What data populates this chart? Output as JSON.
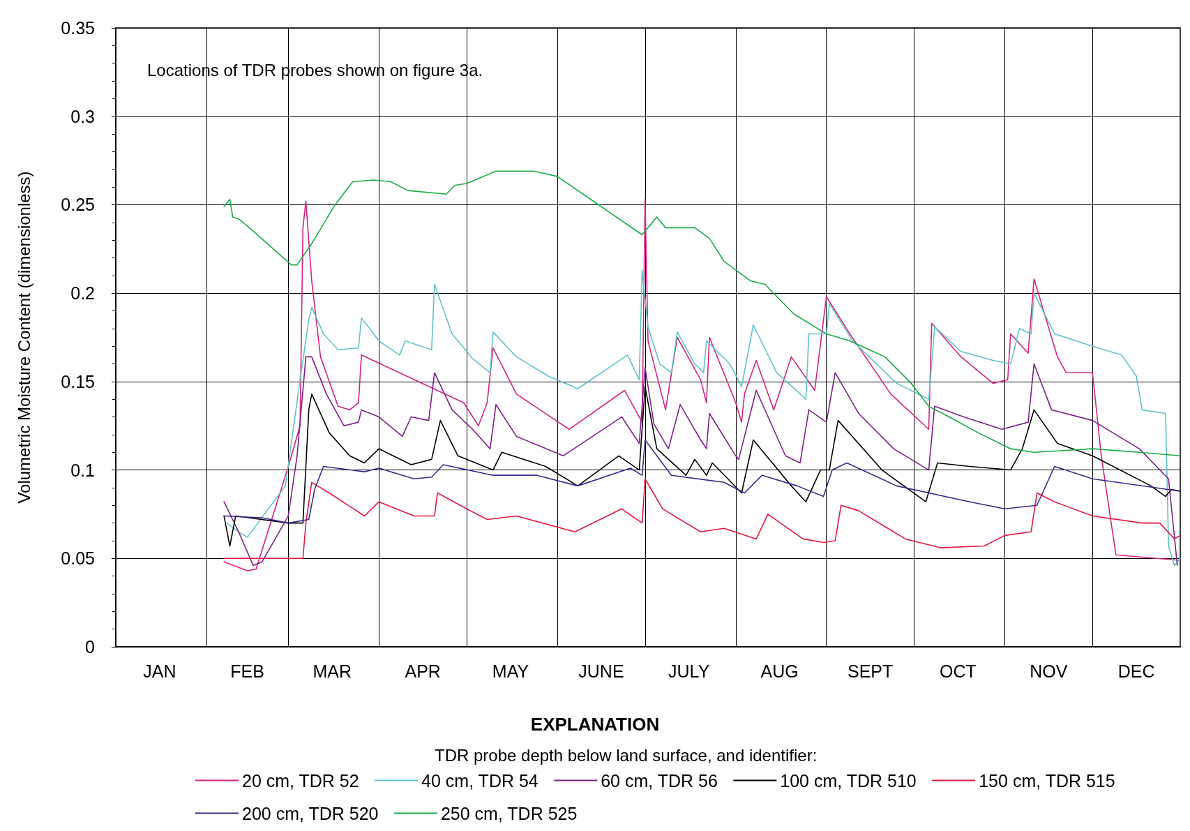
{
  "chart_data": {
    "type": "line",
    "ylabel": "Volumetric Moisture Content (dimensionless)",
    "legend_title": "EXPLANATION",
    "annotations": [
      "Locations of TDR probes shown on figure 3a.",
      "TDR probe depth below land surface, and identifier:"
    ],
    "xlim": [
      "--01-01",
      "--12-31"
    ],
    "xticks": [
      {
        "value": "--01-16",
        "label": "JAN"
      },
      {
        "value": "--02-01",
        "label": null
      },
      {
        "value": "--02-15",
        "label": "FEB"
      },
      {
        "value": "--03-01",
        "label": null
      },
      {
        "value": "--03-16",
        "label": "MAR"
      },
      {
        "value": "--04-01",
        "label": null
      },
      {
        "value": "--04-16",
        "label": "APR"
      },
      {
        "value": "--05-01",
        "label": null
      },
      {
        "value": "--05-16",
        "label": "MAY"
      },
      {
        "value": "--06-01",
        "label": null
      },
      {
        "value": "--06-16",
        "label": "JUNE"
      },
      {
        "value": "--07-01",
        "label": null
      },
      {
        "value": "--07-16",
        "label": "JULY"
      },
      {
        "value": "--08-01",
        "label": null
      },
      {
        "value": "--08-16",
        "label": "AUG"
      },
      {
        "value": "--09-01",
        "label": null
      },
      {
        "value": "--09-16",
        "label": "SEPT"
      },
      {
        "value": "--10-01",
        "label": null
      },
      {
        "value": "--10-16",
        "label": "OCT"
      },
      {
        "value": "--11-01",
        "label": null
      },
      {
        "value": "--11-16",
        "label": "NOV"
      },
      {
        "value": "--12-01",
        "label": null
      },
      {
        "value": "--12-16",
        "label": "DEC"
      }
    ],
    "ylim": [
      0,
      0.35
    ],
    "yticks": [
      0,
      0.05,
      0.1,
      0.15,
      0.2,
      0.25,
      0.3,
      0.35
    ],
    "grid": true,
    "legend": "bottom",
    "marker": "none",
    "line_style": "solid",
    "series": [
      {
        "name": "20 cm, TDR 52",
        "color": "#d4237f",
        "x": [
          "--02-07",
          "--02-15",
          "--02-18",
          "--03-01",
          "--03-05",
          "--03-06",
          "--03-07",
          "--03-09",
          "--03-12",
          "--03-18",
          "--03-22",
          "--03-25",
          "--03-26",
          "--04-30",
          "--05-05",
          "--05-08",
          "--05-10",
          "--05-18",
          "--06-05",
          "--06-24",
          "--06-30",
          "--07-01",
          "--07-02",
          "--07-08",
          "--07-12",
          "--07-20",
          "--07-22",
          "--07-23",
          "--08-01",
          "--08-03",
          "--08-04",
          "--08-08",
          "--08-14",
          "--08-20",
          "--08-28",
          "--09-01",
          "--09-09",
          "--09-23",
          "--10-06",
          "--10-07",
          "--10-17",
          "--10-28",
          "--11-02",
          "--11-03",
          "--11-09",
          "--11-11",
          "--11-19",
          "--11-22",
          "--12-01",
          "--12-04",
          "--12-09",
          "--12-30"
        ],
        "values": [
          0.048,
          0.043,
          0.044,
          0.102,
          0.125,
          0.237,
          0.252,
          0.207,
          0.164,
          0.136,
          0.134,
          0.138,
          0.165,
          0.138,
          0.125,
          0.138,
          0.169,
          0.143,
          0.123,
          0.145,
          0.127,
          0.253,
          0.173,
          0.134,
          0.175,
          0.151,
          0.138,
          0.175,
          0.138,
          0.127,
          0.143,
          0.162,
          0.134,
          0.164,
          0.145,
          0.198,
          0.177,
          0.143,
          0.123,
          0.183,
          0.164,
          0.149,
          0.151,
          0.177,
          0.166,
          0.208,
          0.164,
          0.155,
          0.155,
          0.108,
          0.052,
          0.049
        ]
      },
      {
        "name": "40 cm, TDR 54",
        "color": "#5fc3c9",
        "x": [
          "--02-08",
          "--02-12",
          "--02-15",
          "--02-28",
          "--03-05",
          "--03-08",
          "--03-09",
          "--03-13",
          "--03-18",
          "--03-25",
          "--03-26",
          "--04-01",
          "--04-08",
          "--04-10",
          "--04-19",
          "--04-20",
          "--04-26",
          "--05-03",
          "--05-09",
          "--05-10",
          "--05-18",
          "--05-29",
          "--06-08",
          "--06-25",
          "--06-29",
          "--06-30",
          "--07-02",
          "--07-06",
          "--07-10",
          "--07-12",
          "--07-18",
          "--07-21",
          "--07-22",
          "--07-30",
          "--08-03",
          "--08-07",
          "--08-15",
          "--08-25",
          "--08-26",
          "--09-01",
          "--09-02",
          "--09-10",
          "--09-25",
          "--10-06",
          "--10-08",
          "--10-17",
          "--10-28",
          "--11-03",
          "--11-06",
          "--11-10",
          "--11-11",
          "--11-18",
          "--12-01",
          "--12-11",
          "--12-16",
          "--12-18",
          "--12-26",
          "--12-27",
          "--12-29",
          "--12-31"
        ],
        "values": [
          0.07,
          0.065,
          0.062,
          0.091,
          0.151,
          0.185,
          0.192,
          0.177,
          0.168,
          0.169,
          0.186,
          0.173,
          0.165,
          0.173,
          0.168,
          0.205,
          0.177,
          0.163,
          0.155,
          0.178,
          0.164,
          0.153,
          0.146,
          0.165,
          0.151,
          0.213,
          0.181,
          0.16,
          0.155,
          0.178,
          0.16,
          0.155,
          0.173,
          0.16,
          0.147,
          0.182,
          0.155,
          0.14,
          0.177,
          0.177,
          0.194,
          0.173,
          0.149,
          0.14,
          0.181,
          0.167,
          0.162,
          0.16,
          0.18,
          0.177,
          0.2,
          0.177,
          0.17,
          0.165,
          0.153,
          0.134,
          0.132,
          0.057,
          0.046,
          0.05
        ]
      },
      {
        "name": "60 cm, TDR 56",
        "color": "#7d1f8c",
        "x": [
          "--02-07",
          "--02-12",
          "--02-17",
          "--02-20",
          "--03-01",
          "--03-04",
          "--03-07",
          "--03-09",
          "--03-14",
          "--03-20",
          "--03-25",
          "--03-26",
          "--04-01",
          "--04-09",
          "--04-12",
          "--04-18",
          "--04-20",
          "--04-26",
          "--05-03",
          "--05-09",
          "--05-11",
          "--05-18",
          "--06-03",
          "--06-23",
          "--06-29",
          "--07-01",
          "--07-04",
          "--07-09",
          "--07-13",
          "--07-20",
          "--07-22",
          "--07-23",
          "--08-01",
          "--08-02",
          "--08-08",
          "--08-18",
          "--08-23",
          "--08-26",
          "--09-01",
          "--09-04",
          "--09-12",
          "--09-24",
          "--10-06",
          "--10-08",
          "--10-18",
          "--10-31",
          "--11-09",
          "--11-11",
          "--11-17",
          "--12-01",
          "--12-17",
          "--12-27",
          "--12-30"
        ],
        "values": [
          0.082,
          0.065,
          0.046,
          0.048,
          0.074,
          0.108,
          0.164,
          0.164,
          0.143,
          0.125,
          0.127,
          0.134,
          0.13,
          0.119,
          0.13,
          0.128,
          0.155,
          0.134,
          0.123,
          0.112,
          0.137,
          0.119,
          0.108,
          0.13,
          0.115,
          0.158,
          0.126,
          0.112,
          0.137,
          0.117,
          0.112,
          0.132,
          0.108,
          0.106,
          0.145,
          0.108,
          0.104,
          0.134,
          0.127,
          0.155,
          0.132,
          0.112,
          0.1,
          0.136,
          0.13,
          0.123,
          0.127,
          0.16,
          0.134,
          0.128,
          0.112,
          0.095,
          0.046
        ]
      },
      {
        "name": "100 cm, TDR 510",
        "color": "#000000",
        "x": [
          "--02-07",
          "--02-09",
          "--02-11",
          "--03-01",
          "--03-06",
          "--03-08",
          "--03-09",
          "--03-15",
          "--03-22",
          "--03-27",
          "--04-01",
          "--04-12",
          "--04-19",
          "--04-22",
          "--04-28",
          "--05-10",
          "--05-13",
          "--05-28",
          "--06-08",
          "--06-22",
          "--06-29",
          "--07-01",
          "--07-05",
          "--07-15",
          "--07-18",
          "--07-22",
          "--07-24",
          "--08-03",
          "--08-07",
          "--08-20",
          "--08-25",
          "--08-30",
          "--09-02",
          "--09-05",
          "--09-20",
          "--10-05",
          "--10-09",
          "--10-20",
          "--11-03",
          "--11-07",
          "--11-11",
          "--11-19",
          "--12-01",
          "--12-21",
          "--12-26",
          "--12-28",
          "--12-31"
        ],
        "values": [
          0.074,
          0.057,
          0.074,
          0.07,
          0.07,
          0.134,
          0.143,
          0.121,
          0.108,
          0.104,
          0.112,
          0.103,
          0.106,
          0.128,
          0.108,
          0.1,
          0.11,
          0.102,
          0.091,
          0.108,
          0.1,
          0.147,
          0.112,
          0.097,
          0.106,
          0.097,
          0.104,
          0.087,
          0.117,
          0.091,
          0.082,
          0.1,
          0.1,
          0.128,
          0.1,
          0.082,
          0.104,
          0.102,
          0.1,
          0.112,
          0.134,
          0.115,
          0.108,
          0.091,
          0.085,
          0.089,
          0.088
        ]
      },
      {
        "name": "150 cm, TDR 515",
        "color": "#e5173f",
        "x": [
          "--02-07",
          "--02-20",
          "--03-01",
          "--03-06",
          "--03-07",
          "--03-09",
          "--03-15",
          "--03-27",
          "--04-01",
          "--04-13",
          "--04-20",
          "--04-21",
          "--05-01",
          "--05-08",
          "--05-18",
          "--06-07",
          "--06-23",
          "--06-30",
          "--07-01",
          "--07-07",
          "--07-20",
          "--07-28",
          "--08-08",
          "--08-12",
          "--08-24",
          "--08-31",
          "--09-04",
          "--09-06",
          "--09-12",
          "--09-28",
          "--10-10",
          "--10-25",
          "--11-01",
          "--11-10",
          "--11-12",
          "--11-18",
          "--12-01",
          "--12-18",
          "--12-24",
          "--12-29",
          "--12-31"
        ],
        "values": [
          0.05,
          0.05,
          0.05,
          0.05,
          0.07,
          0.093,
          0.087,
          0.074,
          0.082,
          0.074,
          0.074,
          0.087,
          0.078,
          0.072,
          0.074,
          0.065,
          0.078,
          0.07,
          0.095,
          0.078,
          0.065,
          0.067,
          0.061,
          0.075,
          0.061,
          0.059,
          0.06,
          0.08,
          0.077,
          0.061,
          0.056,
          0.057,
          0.063,
          0.065,
          0.087,
          0.082,
          0.074,
          0.07,
          0.07,
          0.061,
          0.063
        ]
      },
      {
        "name": "200 cm, TDR 520",
        "color": "#3b2a8c",
        "x": [
          "--02-07",
          "--02-20",
          "--03-01",
          "--03-08",
          "--03-10",
          "--03-13",
          "--03-27",
          "--04-01",
          "--04-13",
          "--04-19",
          "--04-23",
          "--05-10",
          "--05-25",
          "--06-08",
          "--06-26",
          "--06-30",
          "--07-01",
          "--07-10",
          "--07-28",
          "--08-04",
          "--08-10",
          "--08-22",
          "--08-31",
          "--09-03",
          "--09-08",
          "--09-25",
          "--10-20",
          "--11-01",
          "--11-12",
          "--11-18",
          "--12-01",
          "--12-31"
        ],
        "values": [
          0.074,
          0.073,
          0.07,
          0.072,
          0.089,
          0.102,
          0.099,
          0.101,
          0.095,
          0.096,
          0.103,
          0.097,
          0.097,
          0.091,
          0.101,
          0.097,
          0.117,
          0.097,
          0.093,
          0.087,
          0.097,
          0.091,
          0.085,
          0.1,
          0.104,
          0.091,
          0.082,
          0.078,
          0.08,
          0.102,
          0.095,
          0.088
        ]
      },
      {
        "name": "250 cm, TDR 525",
        "color": "#1aab48",
        "x": [
          "--02-07",
          "--02-09",
          "--02-10",
          "--02-12",
          "--02-15",
          "--03-02",
          "--03-04",
          "--03-09",
          "--03-17",
          "--03-23",
          "--03-30",
          "--04-05",
          "--04-11",
          "--04-24",
          "--04-27",
          "--05-01",
          "--05-11",
          "--05-24",
          "--06-01",
          "--06-30",
          "--07-02",
          "--07-05",
          "--07-08",
          "--07-18",
          "--07-23",
          "--07-28",
          "--08-06",
          "--08-11",
          "--08-21",
          "--09-01",
          "--09-09",
          "--09-21",
          "--09-30",
          "--10-06",
          "--10-13",
          "--10-23",
          "--11-03",
          "--11-11",
          "--11-21",
          "--12-01",
          "--12-17",
          "--12-31"
        ],
        "values": [
          0.249,
          0.253,
          0.243,
          0.242,
          0.238,
          0.216,
          0.216,
          0.228,
          0.25,
          0.263,
          0.264,
          0.263,
          0.258,
          0.256,
          0.261,
          0.262,
          0.269,
          0.269,
          0.266,
          0.233,
          0.237,
          0.243,
          0.237,
          0.237,
          0.231,
          0.218,
          0.207,
          0.205,
          0.188,
          0.177,
          0.173,
          0.164,
          0.149,
          0.136,
          0.13,
          0.121,
          0.112,
          0.11,
          0.111,
          0.112,
          0.11,
          0.108
        ]
      }
    ]
  }
}
